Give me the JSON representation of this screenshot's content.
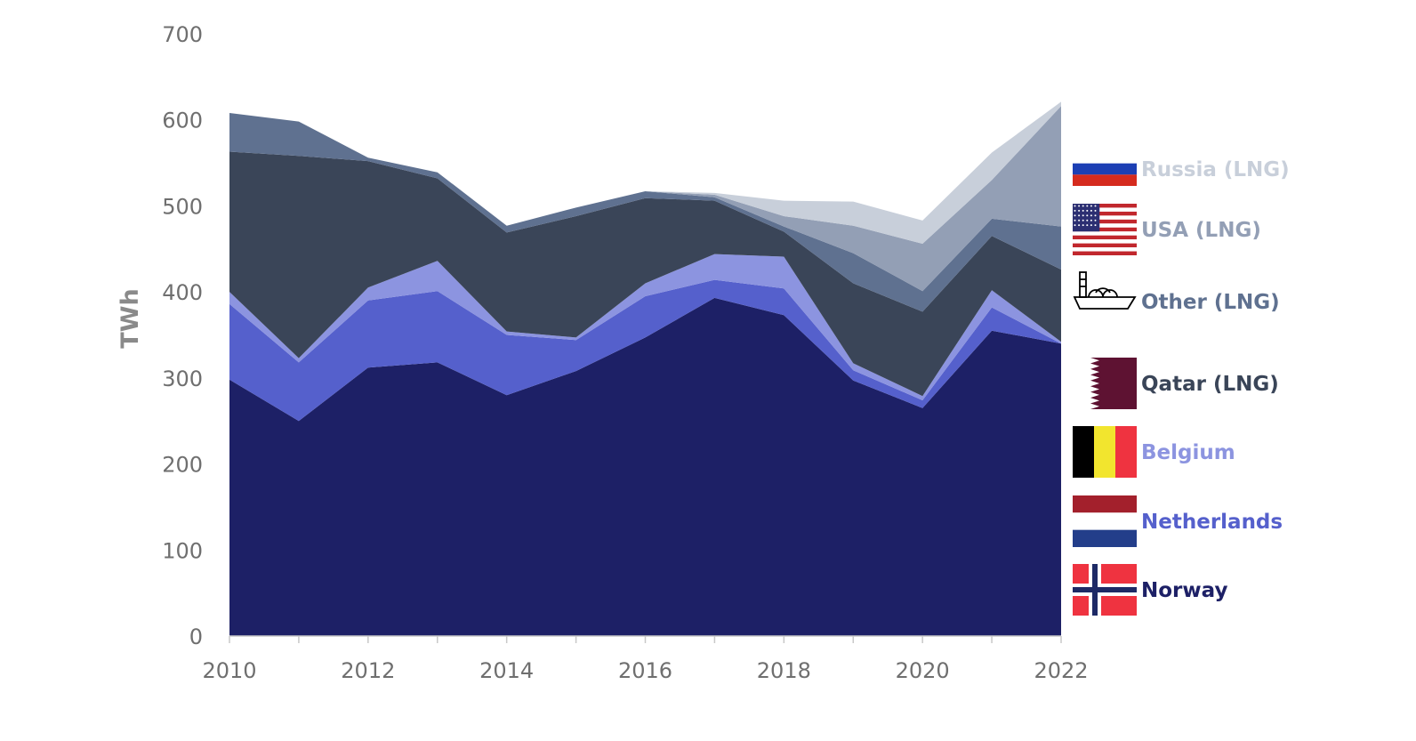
{
  "chart_data": {
    "type": "area",
    "stacked": true,
    "ylabel": "TWh",
    "ylim": [
      0,
      700
    ],
    "yticks": [
      0,
      100,
      200,
      300,
      400,
      500,
      600,
      700
    ],
    "x": [
      2010,
      2011,
      2012,
      2013,
      2014,
      2015,
      2016,
      2017,
      2018,
      2019,
      2020,
      2021,
      2022
    ],
    "xticks": [
      "2010",
      "2012",
      "2014",
      "2016",
      "2018",
      "2020",
      "2022"
    ],
    "grid": false,
    "legend_position": "right",
    "series": [
      {
        "name": "Norway",
        "color": "#1d2066",
        "flag": "norway-flag",
        "values": [
          298,
          250,
          312,
          318,
          280,
          308,
          347,
          393,
          373,
          297,
          265,
          355,
          340
        ]
      },
      {
        "name": "Netherlands",
        "color": "#5560cc",
        "flag": "netherlands-flag",
        "values": [
          88,
          68,
          78,
          83,
          70,
          36,
          48,
          21,
          31,
          12,
          9,
          27,
          0
        ]
      },
      {
        "name": "Belgium",
        "color": "#8c94e0",
        "flag": "belgium-flag",
        "values": [
          14,
          5,
          15,
          35,
          4,
          3,
          15,
          30,
          37,
          8,
          5,
          20,
          2
        ]
      },
      {
        "name": "Qatar (LNG)",
        "color": "#3a4558",
        "flag": "qatar-flag",
        "values": [
          163,
          235,
          147,
          96,
          115,
          141,
          99,
          62,
          29,
          93,
          98,
          63,
          84
        ]
      },
      {
        "name": "Other (LNG)",
        "color": "#5f7190",
        "flag": "ship-icon",
        "values": [
          45,
          40,
          4,
          7,
          8,
          10,
          8,
          4,
          6,
          35,
          24,
          20,
          50
        ]
      },
      {
        "name": "USA (LNG)",
        "color": "#939fb5",
        "flag": "usa-flag",
        "values": [
          0,
          0,
          0,
          0,
          0,
          0,
          0,
          3,
          12,
          32,
          55,
          45,
          140
        ]
      },
      {
        "name": "Russia (LNG)",
        "color": "#c8cfda",
        "flag": "russia-flag",
        "values": [
          0,
          0,
          0,
          0,
          0,
          0,
          0,
          2,
          18,
          28,
          27,
          32,
          5
        ]
      }
    ]
  }
}
